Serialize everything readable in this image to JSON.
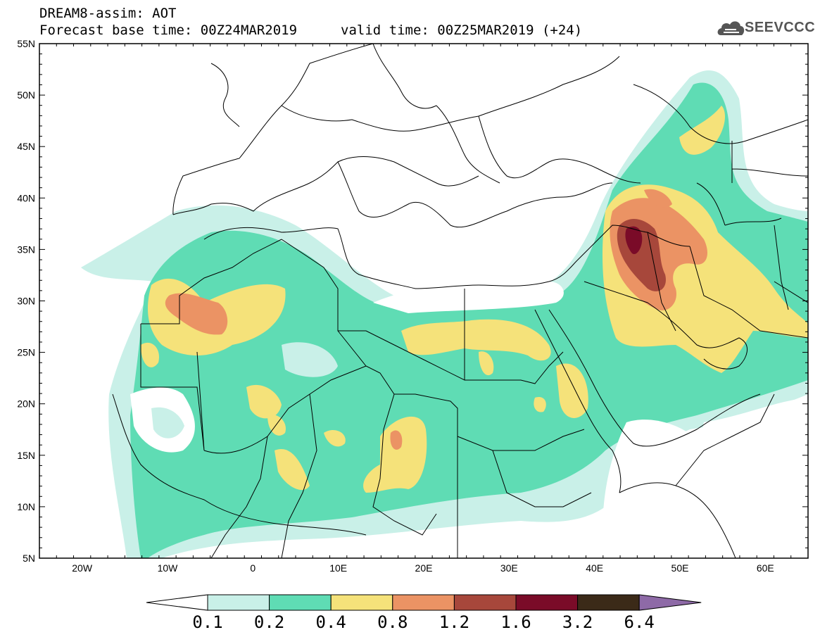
{
  "header": {
    "line1": "DREAM8-assim: AOT",
    "line2": "Forecast base time: 00Z24MAR2019",
    "line3": "valid time: 00Z25MAR2019 (+24)",
    "logo_text": "SEEVCCC",
    "logo_icon": "cloud-icon"
  },
  "map": {
    "lon_range": [
      -25,
      65
    ],
    "lat_range": [
      5,
      55
    ],
    "x_ticks": [
      "20W",
      "10W",
      "0",
      "10E",
      "20E",
      "30E",
      "40E",
      "50E",
      "60E"
    ],
    "y_ticks": [
      "55N",
      "50N",
      "45N",
      "40N",
      "35N",
      "30N",
      "25N",
      "20N",
      "15N",
      "10N",
      "5N"
    ],
    "background": "#ffffff"
  },
  "colorbar": {
    "labels": [
      "0.1",
      "0.2",
      "0.4",
      "0.8",
      "1.2",
      "1.6",
      "3.2",
      "6.4"
    ],
    "colors": [
      "#c9f0e8",
      "#5fdcb4",
      "#f5e27a",
      "#eb9364",
      "#a7473b",
      "#7a0b28",
      "#3b2a18",
      "#8e6aa7"
    ],
    "under_color": "#ffffff"
  }
}
